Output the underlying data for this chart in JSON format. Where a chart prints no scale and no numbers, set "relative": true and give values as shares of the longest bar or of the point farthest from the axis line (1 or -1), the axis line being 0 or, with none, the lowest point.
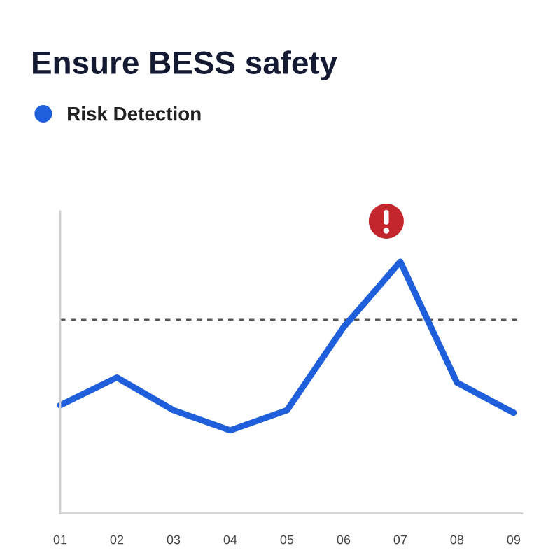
{
  "chart_data": {
    "type": "line",
    "title": "Ensure BESS safety",
    "categories": [
      "01",
      "02",
      "03",
      "04",
      "05",
      "06",
      "07",
      "08",
      "09"
    ],
    "relative": true,
    "series": [
      {
        "name": "Risk Detection",
        "color": "#1f5fdc",
        "values": [
          0.43,
          0.54,
          0.41,
          0.33,
          0.41,
          0.74,
          1,
          0.52,
          0.4
        ]
      }
    ],
    "ref_lines": [
      {
        "axis": "y",
        "value": 0.77,
        "color": "#555555",
        "line_style": "dashed"
      }
    ],
    "legend": "top left",
    "grid": false,
    "tick_labels": "x"
  }
}
